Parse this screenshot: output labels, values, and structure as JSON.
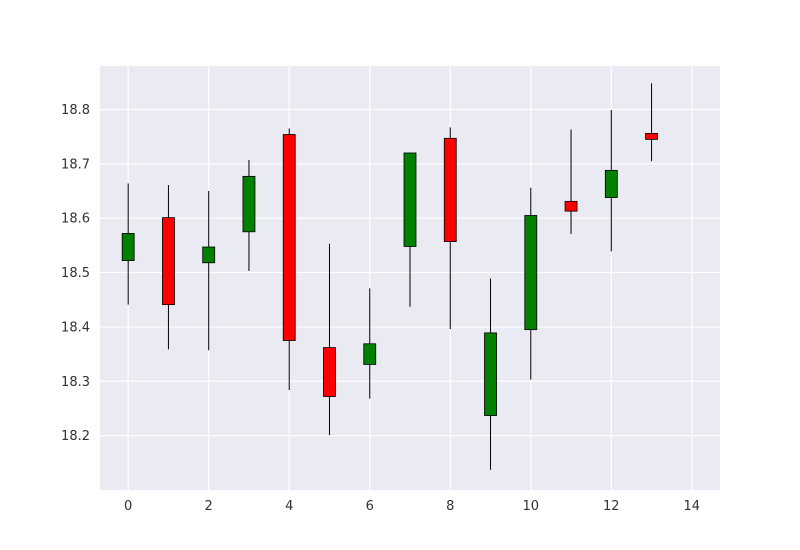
{
  "chart_data": {
    "type": "candlestick",
    "title": "",
    "xlabel": "",
    "ylabel": "",
    "xlim": [
      -0.7,
      14.7
    ],
    "ylim": [
      18.1,
      18.88
    ],
    "grid": true,
    "x_ticks": [
      0,
      2,
      4,
      6,
      8,
      10,
      12,
      14
    ],
    "x_tick_labels": [
      "0",
      "2",
      "4",
      "6",
      "8",
      "10",
      "12",
      "14"
    ],
    "y_ticks": [
      18.2,
      18.3,
      18.4,
      18.5,
      18.6,
      18.7,
      18.8
    ],
    "y_tick_labels": [
      "18.2",
      "18.3",
      "18.4",
      "18.5",
      "18.6",
      "18.7",
      "18.8"
    ],
    "candles": [
      {
        "x": 0,
        "open": 18.522,
        "high": 18.664,
        "low": 18.441,
        "close": 18.572
      },
      {
        "x": 1,
        "open": 18.601,
        "high": 18.661,
        "low": 18.359,
        "close": 18.441
      },
      {
        "x": 2,
        "open": 18.518,
        "high": 18.65,
        "low": 18.357,
        "close": 18.547
      },
      {
        "x": 3,
        "open": 18.575,
        "high": 18.707,
        "low": 18.503,
        "close": 18.677
      },
      {
        "x": 4,
        "open": 18.754,
        "high": 18.765,
        "low": 18.284,
        "close": 18.375
      },
      {
        "x": 5,
        "open": 18.362,
        "high": 18.553,
        "low": 18.201,
        "close": 18.272
      },
      {
        "x": 6,
        "open": 18.331,
        "high": 18.471,
        "low": 18.268,
        "close": 18.369
      },
      {
        "x": 7,
        "open": 18.548,
        "high": 18.72,
        "low": 18.437,
        "close": 18.72
      },
      {
        "x": 8,
        "open": 18.747,
        "high": 18.767,
        "low": 18.396,
        "close": 18.557
      },
      {
        "x": 9,
        "open": 18.237,
        "high": 18.489,
        "low": 18.137,
        "close": 18.389
      },
      {
        "x": 10,
        "open": 18.395,
        "high": 18.656,
        "low": 18.303,
        "close": 18.605
      },
      {
        "x": 11,
        "open": 18.631,
        "high": 18.763,
        "low": 18.571,
        "close": 18.613
      },
      {
        "x": 12,
        "open": 18.638,
        "high": 18.799,
        "low": 18.539,
        "close": 18.688
      },
      {
        "x": 13,
        "open": 18.756,
        "high": 18.848,
        "low": 18.705,
        "close": 18.745
      }
    ],
    "colors": {
      "up": "#008000",
      "down": "#ff0000",
      "edge": "#000000",
      "plot_bg": "#eaeaf2",
      "grid": "#ffffff"
    }
  }
}
